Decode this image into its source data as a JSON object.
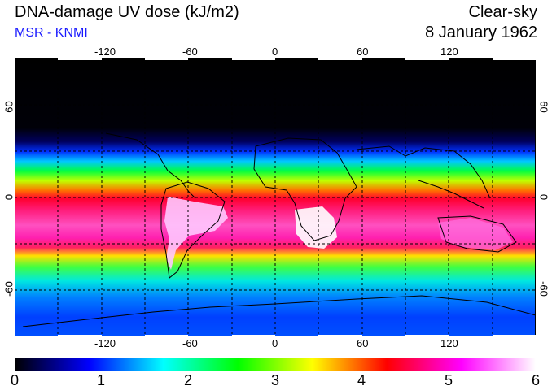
{
  "header": {
    "title": "DNA-damage UV dose (kJ/m2)",
    "source": "MSR - KNMI",
    "condition": "Clear-sky",
    "date": "8 January 1962"
  },
  "map": {
    "lon_ticks": [
      "-120",
      "-60",
      "0",
      "60",
      "120"
    ],
    "lat_ticks_left": [
      "60",
      "0",
      "-60"
    ],
    "lat_ticks_right": [
      "60",
      "0",
      "-60"
    ]
  },
  "colorbar": {
    "labels": [
      "0",
      "1",
      "2",
      "3",
      "4",
      "5",
      "6"
    ],
    "stops": [
      "#000000",
      "#0000ff",
      "#00ffff",
      "#00ff00",
      "#ffff00",
      "#ff0000",
      "#ff00ff",
      "#ffffff"
    ]
  },
  "colors": {
    "title_text": "#000000",
    "source_text": "#1a1aff"
  }
}
